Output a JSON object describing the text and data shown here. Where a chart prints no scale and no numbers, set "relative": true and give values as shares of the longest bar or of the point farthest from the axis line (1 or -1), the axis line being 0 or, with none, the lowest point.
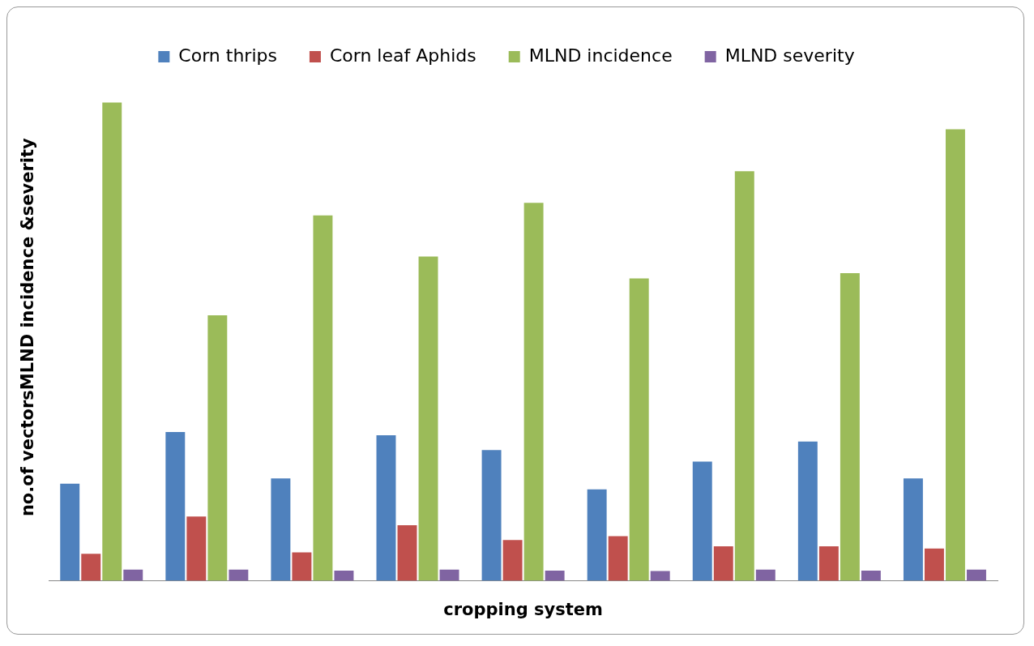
{
  "chart_data": {
    "type": "bar",
    "relative": true,
    "xlabel": "cropping system",
    "ylabel": "no.of vectorsMLND incidence &severity",
    "categories": [
      null,
      null,
      null,
      null,
      null,
      null,
      null,
      null,
      null
    ],
    "legend": "top",
    "grid": false,
    "series": [
      {
        "name": "Corn thrips",
        "color": "#4f81bd",
        "values": [
          0.203,
          0.311,
          0.214,
          0.304,
          0.273,
          0.191,
          0.249,
          0.291,
          0.214
        ]
      },
      {
        "name": "Corn leaf Aphids",
        "color": "#c0504d",
        "values": [
          0.056,
          0.134,
          0.059,
          0.116,
          0.085,
          0.093,
          0.072,
          0.072,
          0.067
        ]
      },
      {
        "name": "MLND incidence",
        "color": "#9bbb59",
        "values": [
          1.0,
          0.555,
          0.764,
          0.678,
          0.79,
          0.632,
          0.856,
          0.643,
          0.944
        ]
      },
      {
        "name": "MLND severity",
        "color": "#8064a2",
        "values": [
          0.023,
          0.023,
          0.021,
          0.023,
          0.021,
          0.02,
          0.023,
          0.021,
          0.023
        ]
      }
    ]
  }
}
